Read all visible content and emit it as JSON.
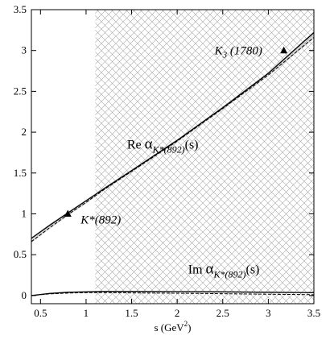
{
  "chart_data": {
    "type": "line",
    "xlabel": "s (GeV",
    "xlabel_sup": "2",
    "xlabel_tail": ")",
    "xlim": [
      0.4,
      3.5
    ],
    "ylim": [
      -0.1,
      3.5
    ],
    "x_ticks": [
      0.5,
      1,
      1.5,
      2,
      2.5,
      3,
      3.5
    ],
    "x_tick_labels": [
      "0.5",
      "1",
      "1.5",
      "2",
      "2.5",
      "3",
      "3.5"
    ],
    "y_ticks": [
      0,
      0.5,
      1,
      1.5,
      2,
      2.5,
      3,
      3.5
    ],
    "y_tick_labels": [
      "0",
      "0.5",
      "1",
      "1.5",
      "2",
      "2.5",
      "3",
      "3.5"
    ],
    "hatched_region_x": [
      1.1,
      3.5
    ],
    "series": [
      {
        "style": "solid",
        "x": [
          0.4,
          0.6,
          0.8,
          1.0,
          1.2,
          1.5,
          2.0,
          2.5,
          3.0,
          3.5
        ],
        "y": [
          0.7,
          0.86,
          1.01,
          1.16,
          1.31,
          1.53,
          1.9,
          2.3,
          2.72,
          3.22
        ]
      },
      {
        "style": "dashed",
        "x": [
          0.4,
          0.6,
          0.8,
          1.0,
          1.2,
          1.5,
          2.0,
          2.5,
          3.0,
          3.5
        ],
        "y": [
          0.66,
          0.83,
          0.99,
          1.14,
          1.3,
          1.52,
          1.89,
          2.29,
          2.7,
          3.16
        ]
      },
      {
        "style": "solid",
        "x": [
          0.4,
          0.6,
          0.8,
          1.0,
          1.2,
          1.5,
          2.0,
          2.5,
          3.0,
          3.5
        ],
        "y": [
          0.0,
          0.025,
          0.04,
          0.045,
          0.05,
          0.05,
          0.048,
          0.045,
          0.04,
          0.035
        ]
      },
      {
        "style": "dashed",
        "x": [
          0.4,
          0.6,
          0.8,
          1.0,
          1.2,
          1.5,
          2.0,
          2.5,
          3.0,
          3.5
        ],
        "y": [
          0.0,
          0.02,
          0.03,
          0.035,
          0.035,
          0.032,
          0.028,
          0.022,
          0.016,
          0.01
        ]
      }
    ],
    "points": [
      {
        "label": "K*(892)",
        "x": 0.8,
        "y": 1.0
      },
      {
        "label": "K",
        "label_sub": "3",
        "label_tail": " (1780)",
        "x": 3.17,
        "y": 3.0
      }
    ],
    "annotations": {
      "re_label": {
        "prefix": "Re ",
        "alpha": "α",
        "sub": "K*(892)",
        "suffix": "(s)",
        "x": 1.45,
        "y": 1.8
      },
      "im_label": {
        "prefix": "Im ",
        "alpha": "α",
        "sub": "K*(892)",
        "suffix": "(s)",
        "x": 2.12,
        "y": 0.27
      }
    },
    "grid": false,
    "legend": "none"
  }
}
